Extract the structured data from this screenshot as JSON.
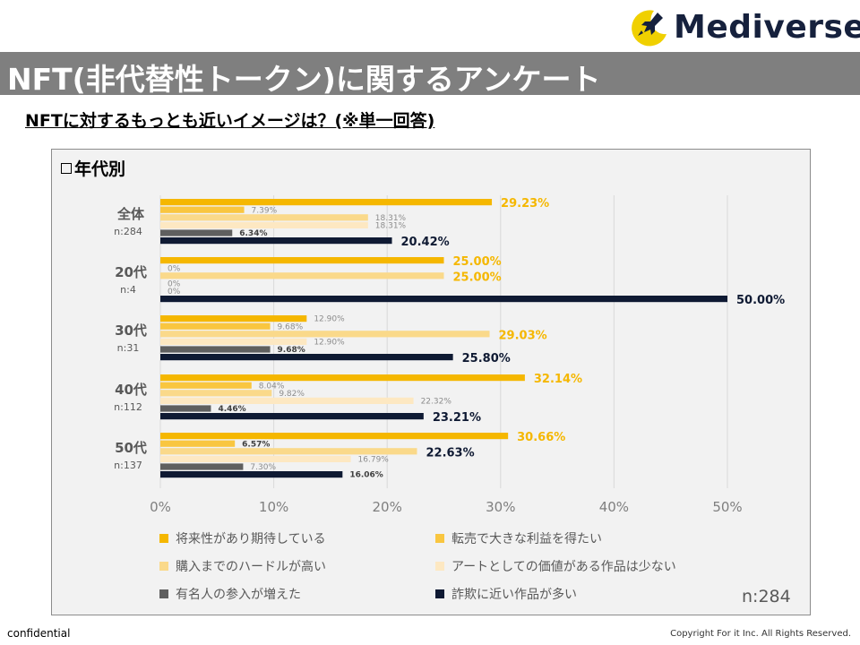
{
  "brand": {
    "name": "Mediverse"
  },
  "header": {
    "title": "NFT(非代替性トークン)に関するアンケート"
  },
  "question": "NFTに対するもっとも近いイメージは？(※単一回答)",
  "section": {
    "label": "年代別"
  },
  "n_total": "n:284",
  "footer": {
    "left": "confidential",
    "right": "Copyright For it Inc. All Rights Reserved."
  },
  "colors": {
    "s1": "#f5b700",
    "s2": "#f9c640",
    "s3": "#fad98a",
    "s4": "#fde8c2",
    "s5": "#5f5f5f",
    "s6": "#0f1a33",
    "grid": "#d9d9d9",
    "axis_text": "#7f7f7f",
    "group_label": "#595959"
  },
  "chart_data": {
    "type": "bar",
    "orientation": "horizontal",
    "xlim": [
      0,
      50
    ],
    "xticks": [
      "0%",
      "10%",
      "20%",
      "30%",
      "40%",
      "50%"
    ],
    "groups": [
      {
        "name": "全体",
        "n": "n:284"
      },
      {
        "name": "20代",
        "n": "n:4"
      },
      {
        "name": "30代",
        "n": "n:31"
      },
      {
        "name": "40代",
        "n": "n:112"
      },
      {
        "name": "50代",
        "n": "n:137"
      }
    ],
    "series": [
      {
        "name": "将来性があり期待している",
        "color_key": "s1",
        "values": [
          29.23,
          25.0,
          12.9,
          32.14,
          30.66
        ],
        "labels": [
          "29.23%",
          "25.00%",
          "12.90%",
          "32.14%",
          "30.66%"
        ]
      },
      {
        "name": "転売で大きな利益を得たい",
        "color_key": "s2",
        "values": [
          7.39,
          0,
          9.68,
          8.04,
          6.57
        ],
        "labels": [
          "7.39%",
          "0%",
          "9.68%",
          "8.04%",
          "6.57%"
        ]
      },
      {
        "name": "購入までのハードルが高い",
        "color_key": "s3",
        "values": [
          18.31,
          25.0,
          29.03,
          9.82,
          22.63
        ],
        "labels": [
          "18.31%",
          "25.00%",
          "29.03%",
          "9.82%",
          "22.63%"
        ]
      },
      {
        "name": "アートとしての価値がある作品は少ない",
        "color_key": "s4",
        "values": [
          18.31,
          0,
          12.9,
          22.32,
          16.79
        ],
        "labels": [
          "18.31%",
          "0%",
          "12.90%",
          "22.32%",
          "16.79%"
        ]
      },
      {
        "name": "有名人の参入が増えた",
        "color_key": "s5",
        "values": [
          6.34,
          0,
          9.68,
          4.46,
          7.3
        ],
        "labels": [
          "6.34%",
          "0%",
          "9.68%",
          "4.46%",
          "7.30%"
        ]
      },
      {
        "name": "詐欺に近い作品が多い",
        "color_key": "s6",
        "values": [
          20.42,
          50.0,
          25.8,
          23.21,
          16.06
        ],
        "labels": [
          "20.42%",
          "50.00%",
          "25.80%",
          "23.21%",
          "16.06%"
        ]
      }
    ],
    "label_styles": [
      [
        "big-s1",
        "small",
        "small",
        "small",
        "bold-dark",
        "big-dark"
      ],
      [
        "big-s1",
        "small",
        "big-s1",
        "small",
        "small",
        "big-dark"
      ],
      [
        "small",
        "small",
        "big-s1",
        "small",
        "bold-dark",
        "big-dark"
      ],
      [
        "big-s1",
        "small",
        "small",
        "small",
        "bold-dark",
        "big-dark"
      ],
      [
        "big-s1",
        "bold-dark",
        "big-dark",
        "small",
        "small",
        "bold-dark"
      ]
    ]
  }
}
